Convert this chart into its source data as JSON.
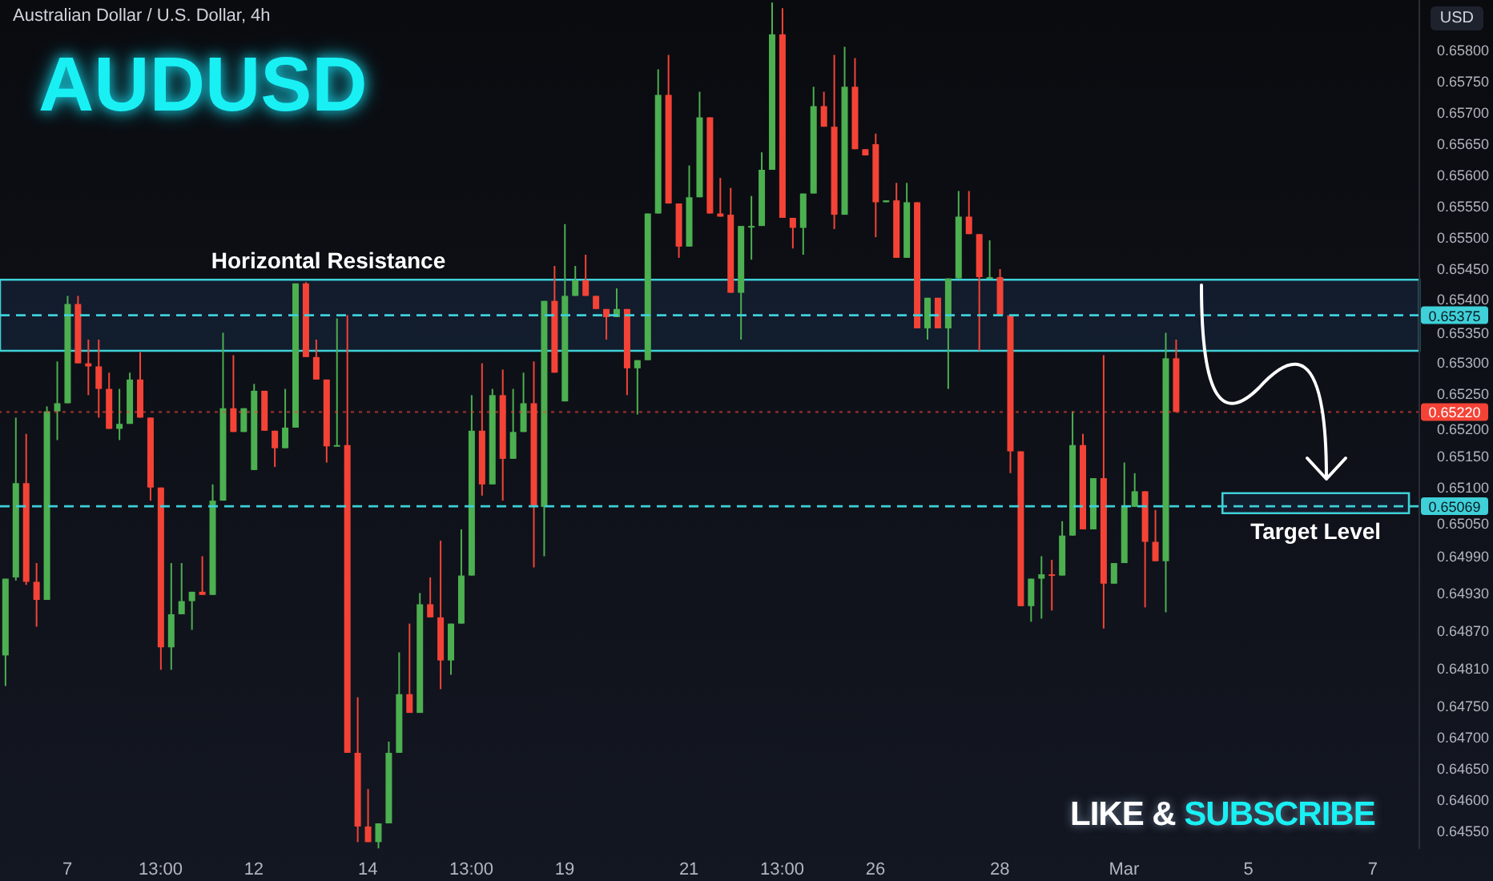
{
  "chart_data": {
    "type": "candlestick",
    "title": "AUDUSD",
    "subtitle": "Australian Dollar / U.S. Dollar, 4h",
    "ylabel": "USD",
    "annotations": [
      "LIKE & SUBSCRIBE"
    ],
    "categories": [
      null,
      null,
      null,
      null,
      null,
      null,
      "7",
      null,
      null,
      null,
      null,
      null,
      null,
      null,
      null,
      "13:00",
      null,
      null,
      null,
      null,
      null,
      null,
      null,
      null,
      "12",
      null,
      null,
      null,
      null,
      null,
      null,
      null,
      null,
      null,
      null,
      "14",
      null,
      null,
      null,
      null,
      null,
      null,
      null,
      null,
      null,
      "13:00",
      null,
      null,
      null,
      null,
      null,
      null,
      null,
      null,
      "19",
      null,
      null,
      null,
      null,
      null,
      null,
      null,
      null,
      null,
      null,
      null,
      "21",
      null,
      null,
      null,
      null,
      null,
      null,
      null,
      null,
      "13:00",
      null,
      null,
      null,
      null,
      null,
      null,
      null,
      null,
      "26",
      null,
      null,
      null,
      null,
      null,
      null,
      null,
      null,
      null,
      null,
      null,
      "28",
      null,
      null,
      null,
      null,
      null,
      null,
      null,
      null,
      null,
      null,
      null,
      "Mar",
      null,
      null,
      null,
      null,
      null,
      null,
      null,
      null,
      null,
      null,
      null,
      "5",
      null,
      null,
      null,
      null,
      null,
      null,
      null,
      null,
      null,
      null,
      null,
      "7",
      null,
      null,
      null,
      null
    ],
    "ohlc": [
      [
        0.6483,
        0.64953,
        0.64781,
        0.64953
      ],
      [
        0.64955,
        0.65211,
        0.6495,
        0.65106
      ],
      [
        0.65106,
        0.65185,
        0.64943,
        0.64948
      ],
      [
        0.64948,
        0.64978,
        0.64876,
        0.64919
      ],
      [
        0.64919,
        0.65229,
        0.64919,
        0.65221
      ],
      [
        0.65221,
        0.65301,
        0.65175,
        0.65234
      ],
      [
        0.65234,
        0.65406,
        0.65234,
        0.65393
      ],
      [
        0.65393,
        0.65406,
        0.65298,
        0.65298
      ],
      [
        0.65298,
        0.65336,
        0.65247,
        0.65293
      ],
      [
        0.65293,
        0.65336,
        0.65211,
        0.65257
      ],
      [
        0.65257,
        0.65283,
        0.65193,
        0.65193
      ],
      [
        0.65193,
        0.65257,
        0.65175,
        0.65201
      ],
      [
        0.65201,
        0.65283,
        0.65201,
        0.65272
      ],
      [
        0.65272,
        0.65316,
        0.65211,
        0.65211
      ],
      [
        0.65211,
        0.65211,
        0.65078,
        0.65099
      ],
      [
        0.65099,
        0.65099,
        0.64807,
        0.64843
      ],
      [
        0.64843,
        0.64978,
        0.64807,
        0.64896
      ],
      [
        0.64896,
        0.64978,
        0.64896,
        0.64917
      ],
      [
        0.64917,
        0.64932,
        0.64871,
        0.64932
      ],
      [
        0.64932,
        0.64989,
        0.64927,
        0.64927
      ],
      [
        0.64927,
        0.65104,
        0.64927,
        0.65078
      ],
      [
        0.65078,
        0.65347,
        0.65078,
        0.65226
      ],
      [
        0.65226,
        0.65311,
        0.65188,
        0.65188
      ],
      [
        0.65188,
        0.65226,
        0.65188,
        0.65226
      ],
      [
        0.65127,
        0.65265,
        0.65127,
        0.65254
      ],
      [
        0.65254,
        0.65254,
        0.6519,
        0.6519
      ],
      [
        0.6519,
        0.6519,
        0.65132,
        0.65162
      ],
      [
        0.65162,
        0.65257,
        0.65162,
        0.65195
      ],
      [
        0.65195,
        0.65426,
        0.65195,
        0.65426
      ],
      [
        0.65426,
        0.65428,
        0.65308,
        0.65308
      ],
      [
        0.65308,
        0.65336,
        0.65272,
        0.65272
      ],
      [
        0.65272,
        0.65272,
        0.65139,
        0.65165
      ],
      [
        0.65165,
        0.6537,
        0.65165,
        0.65167
      ],
      [
        0.65167,
        0.65375,
        0.64674,
        0.64674
      ],
      [
        0.64674,
        0.64763,
        0.64531,
        0.64556
      ],
      [
        0.64556,
        0.64616,
        0.64531,
        0.64531
      ],
      [
        0.64531,
        0.64561,
        0.64521,
        0.64561
      ],
      [
        0.64561,
        0.64692,
        0.64561,
        0.64674
      ],
      [
        0.64674,
        0.64835,
        0.64674,
        0.64768
      ],
      [
        0.64768,
        0.64881,
        0.64738,
        0.64738
      ],
      [
        0.64738,
        0.6493,
        0.64738,
        0.64912
      ],
      [
        0.64912,
        0.64955,
        0.64891,
        0.64891
      ],
      [
        0.64891,
        0.65014,
        0.64776,
        0.64822
      ],
      [
        0.64822,
        0.64881,
        0.64799,
        0.64881
      ],
      [
        0.64881,
        0.65032,
        0.64881,
        0.64958
      ],
      [
        0.64958,
        0.65247,
        0.64958,
        0.6519
      ],
      [
        0.6519,
        0.65298,
        0.65086,
        0.65104
      ],
      [
        0.65104,
        0.65257,
        0.65104,
        0.65247
      ],
      [
        0.65247,
        0.65288,
        0.65078,
        0.65145
      ],
      [
        0.65145,
        0.65257,
        0.65145,
        0.65188
      ],
      [
        0.65188,
        0.65283,
        0.65188,
        0.65234
      ],
      [
        0.65234,
        0.65301,
        0.64971,
        0.65068
      ],
      [
        0.65068,
        0.65398,
        0.64989,
        0.65398
      ],
      [
        0.65398,
        0.65454,
        0.65283,
        0.65283
      ],
      [
        0.65237,
        0.65521,
        0.65237,
        0.65406
      ],
      [
        0.65406,
        0.65454,
        0.65406,
        0.65431
      ],
      [
        0.65431,
        0.65472,
        0.65406,
        0.65406
      ],
      [
        0.65406,
        0.65406,
        0.65385,
        0.65385
      ],
      [
        0.65385,
        0.65385,
        0.65336,
        0.65372
      ],
      [
        0.65372,
        0.65418,
        0.65372,
        0.65385
      ],
      [
        0.65385,
        0.65385,
        0.65247,
        0.6529
      ],
      [
        0.6529,
        0.65303,
        0.65216,
        0.65303
      ],
      [
        0.65303,
        0.65538,
        0.65303,
        0.65538
      ],
      [
        0.65538,
        0.65769,
        0.65538,
        0.65728
      ],
      [
        0.65728,
        0.65792,
        0.65554,
        0.65554
      ],
      [
        0.65554,
        0.65554,
        0.65467,
        0.65485
      ],
      [
        0.65485,
        0.65615,
        0.65485,
        0.65564
      ],
      [
        0.65564,
        0.65733,
        0.65564,
        0.65692
      ],
      [
        0.65692,
        0.65692,
        0.65538,
        0.65538
      ],
      [
        0.65538,
        0.65595,
        0.65533,
        0.65533
      ],
      [
        0.65536,
        0.65579,
        0.65411,
        0.65411
      ],
      [
        0.65411,
        0.65518,
        0.65336,
        0.65518
      ],
      [
        0.65517,
        0.65566,
        0.65464,
        0.65518
      ],
      [
        0.65518,
        0.65636,
        0.65518,
        0.65608
      ],
      [
        0.65608,
        0.65876,
        0.65608,
        0.65825
      ],
      [
        0.65825,
        0.65867,
        0.65531,
        0.65531
      ],
      [
        0.65531,
        0.65531,
        0.65482,
        0.65515
      ],
      [
        0.65515,
        0.6557,
        0.65472,
        0.6557
      ],
      [
        0.6557,
        0.65741,
        0.6557,
        0.6571
      ],
      [
        0.6571,
        0.65733,
        0.65677,
        0.65677
      ],
      [
        0.65677,
        0.65792,
        0.65513,
        0.65536
      ],
      [
        0.65536,
        0.65805,
        0.65536,
        0.65741
      ],
      [
        0.65741,
        0.65787,
        0.65641,
        0.65641
      ],
      [
        0.65641,
        0.65641,
        0.65631,
        0.65631
      ],
      [
        0.65649,
        0.65666,
        0.655,
        0.65556
      ],
      [
        0.65556,
        0.65559,
        0.65556,
        0.65559
      ],
      [
        0.65559,
        0.65587,
        0.65467,
        0.65467
      ],
      [
        0.65467,
        0.65587,
        0.65467,
        0.65556
      ],
      [
        0.65556,
        0.65556,
        0.65354,
        0.65354
      ],
      [
        0.65354,
        0.65403,
        0.65336,
        0.65403
      ],
      [
        0.65403,
        0.65403,
        0.65354,
        0.65354
      ],
      [
        0.65354,
        0.65434,
        0.65257,
        0.65434
      ],
      [
        0.65434,
        0.65574,
        0.65434,
        0.65533
      ],
      [
        0.65533,
        0.65574,
        0.65505,
        0.65505
      ],
      [
        0.65505,
        0.65505,
        0.65318,
        0.65436
      ],
      [
        0.65436,
        0.65495,
        0.65436,
        0.65436
      ],
      [
        0.65436,
        0.65449,
        0.65375,
        0.65375
      ],
      [
        0.65375,
        0.65375,
        0.65122,
        0.65157
      ],
      [
        0.65157,
        0.65157,
        0.64909,
        0.64909
      ],
      [
        0.64909,
        0.64953,
        0.64884,
        0.64953
      ],
      [
        0.64953,
        0.64989,
        0.64889,
        0.6496
      ],
      [
        0.6496,
        0.64983,
        0.64902,
        0.64958
      ],
      [
        0.64958,
        0.65045,
        0.64958,
        0.65022
      ],
      [
        0.65022,
        0.65221,
        0.65022,
        0.65167
      ],
      [
        0.65167,
        0.65185,
        0.65032,
        0.65032
      ],
      [
        0.65032,
        0.65114,
        0.65032,
        0.65114
      ],
      [
        0.65114,
        0.65311,
        0.64873,
        0.64945
      ],
      [
        0.64945,
        0.64978,
        0.64945,
        0.64978
      ],
      [
        0.64978,
        0.65139,
        0.64978,
        0.65068
      ],
      [
        0.65068,
        0.65122,
        0.65068,
        0.65093
      ],
      [
        0.65093,
        0.65093,
        0.64907,
        0.65012
      ],
      [
        0.65012,
        0.65063,
        0.64981,
        0.64981
      ],
      [
        0.64981,
        0.65347,
        0.64899,
        0.65306
      ],
      [
        0.65306,
        0.65336,
        0.6522,
        0.6522
      ],
      null,
      null,
      null,
      null,
      null,
      null,
      null,
      null,
      null,
      null,
      null,
      null,
      null,
      null,
      null,
      null,
      null,
      null,
      null,
      null,
      null,
      null,
      null
    ],
    "colors": [
      "#4caf50",
      "#4caf50",
      "#f44336",
      "#f44336",
      "#4caf50",
      "#4caf50",
      "#4caf50",
      "#f44336",
      "#f44336",
      "#f44336",
      "#f44336",
      "#4caf50",
      "#4caf50",
      "#f44336",
      "#f44336",
      "#f44336",
      "#4caf50",
      "#4caf50",
      "#4caf50",
      "#f44336",
      "#4caf50",
      "#4caf50",
      "#f44336",
      "#4caf50",
      "#4caf50",
      "#f44336",
      "#f44336",
      "#4caf50",
      "#4caf50",
      "#f44336",
      "#f44336",
      "#f44336",
      "#4caf50",
      "#f44336",
      "#f44336",
      "#f44336",
      "#4caf50",
      "#4caf50",
      "#4caf50",
      "#f44336",
      "#4caf50",
      "#f44336",
      "#f44336",
      "#4caf50",
      "#4caf50",
      "#4caf50",
      "#f44336",
      "#4caf50",
      "#f44336",
      "#4caf50",
      "#4caf50",
      "#f44336",
      "#4caf50",
      "#f44336",
      "#4caf50",
      "#4caf50",
      "#f44336",
      "#f44336",
      "#f44336",
      "#4caf50",
      "#f44336",
      "#4caf50",
      "#4caf50",
      "#4caf50",
      "#f44336",
      "#f44336",
      "#4caf50",
      "#4caf50",
      "#f44336",
      "#f44336",
      "#f44336",
      "#4caf50",
      "#4caf50",
      "#4caf50",
      "#4caf50",
      "#f44336",
      "#f44336",
      "#4caf50",
      "#4caf50",
      "#f44336",
      "#f44336",
      "#4caf50",
      "#f44336",
      "#f44336",
      "#f44336",
      "#4caf50",
      "#f44336",
      "#4caf50",
      "#f44336",
      "#4caf50",
      "#f44336",
      "#4caf50",
      "#4caf50",
      "#f44336",
      "#f44336",
      "#4caf50",
      "#f44336",
      "#f44336",
      "#f44336",
      "#4caf50",
      "#4caf50",
      "#f44336",
      "#4caf50",
      "#4caf50",
      "#f44336",
      "#4caf50",
      "#f44336",
      "#4caf50",
      "#4caf50",
      "#4caf50",
      "#f44336",
      "#f44336",
      "#4caf50",
      "#f44336",
      null,
      null,
      null,
      null,
      null,
      null,
      null,
      null,
      null,
      null,
      null,
      null,
      null,
      null,
      null,
      null,
      null,
      null,
      null,
      null,
      null,
      null,
      null
    ],
    "ylim": [
      0.6452,
      0.6588
    ],
    "yticks": [
      {
        "value": 0.658,
        "label": "0.65800"
      },
      {
        "value": 0.6575,
        "label": "0.65750"
      },
      {
        "value": 0.657,
        "label": "0.65700"
      },
      {
        "value": 0.6565,
        "label": "0.65650"
      },
      {
        "value": 0.656,
        "label": "0.65600"
      },
      {
        "value": 0.6555,
        "label": "0.65550"
      },
      {
        "value": 0.655,
        "label": "0.65500"
      },
      {
        "value": 0.6545,
        "label": "0.65450"
      },
      {
        "value": 0.654,
        "label": "0.65400"
      },
      {
        "value": 0.6535,
        "label": "0.65350"
      },
      {
        "value": 0.653,
        "label": "0.65300"
      },
      {
        "value": 0.6525,
        "label": "0.65250"
      },
      {
        "value": 0.652,
        "label": "0.65200"
      },
      {
        "value": 0.6515,
        "label": "0.65150"
      },
      {
        "value": 0.651,
        "label": "0.65100"
      },
      {
        "value": 0.6505,
        "label": "0.65050"
      },
      {
        "value": 0.6499,
        "label": "0.64990"
      },
      {
        "value": 0.6493,
        "label": "0.64930"
      },
      {
        "value": 0.6487,
        "label": "0.64870"
      },
      {
        "value": 0.6481,
        "label": "0.64810"
      },
      {
        "value": 0.6475,
        "label": "0.64750"
      },
      {
        "value": 0.647,
        "label": "0.64700"
      },
      {
        "value": 0.6465,
        "label": "0.64650"
      },
      {
        "value": 0.646,
        "label": "0.64600"
      },
      {
        "value": 0.6455,
        "label": "0.64550"
      }
    ],
    "bands": [
      {
        "axis": "y",
        "from": 0.65318,
        "to": 0.65432,
        "label": "Horizontal Resistance",
        "color": "#3fd0d8"
      },
      {
        "axis": "y",
        "from": 0.65058,
        "to": 0.6509,
        "label": "Target Level",
        "color": "#3fd0d8"
      }
    ],
    "ref_lines": [
      {
        "axis": "y",
        "value": 0.65375,
        "label": "0.65375",
        "color": "#3fd0d8",
        "line_style": "dashed"
      },
      {
        "axis": "y",
        "value": 0.65069,
        "label": "0.65069",
        "color": "#3fd0d8",
        "line_style": "dashed"
      },
      {
        "axis": "y",
        "value": 0.6522,
        "label": "0.65220",
        "color": "#f44336",
        "line_style": "dotted"
      }
    ]
  }
}
